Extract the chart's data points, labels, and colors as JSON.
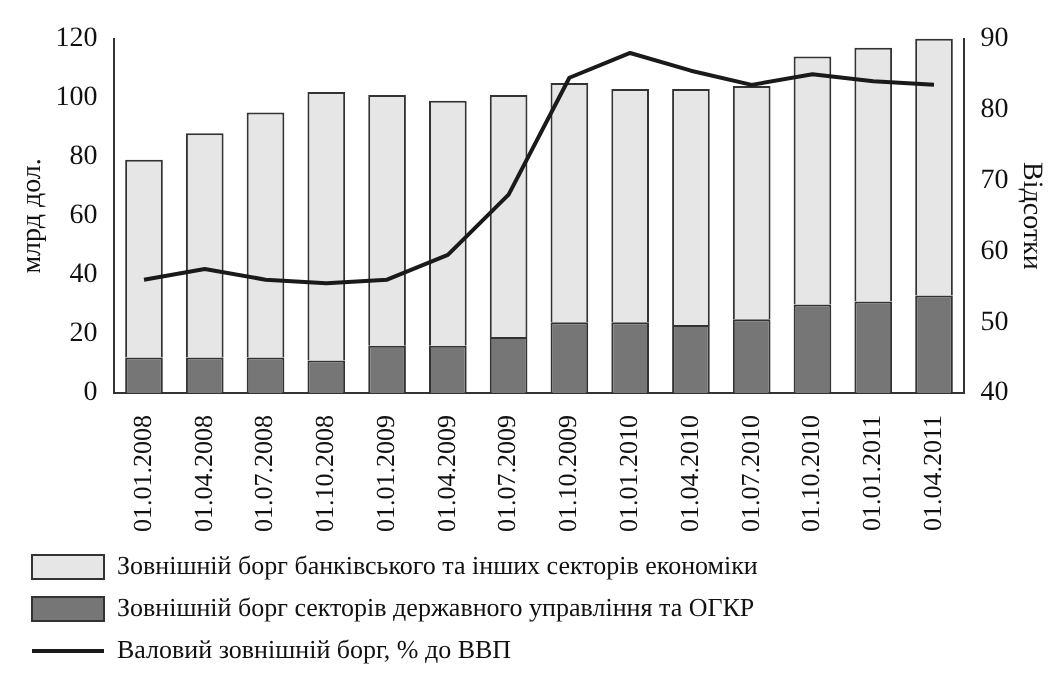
{
  "chart_data": {
    "type": "bar",
    "stacked": true,
    "ylabel": "млрд дол.",
    "y2label": "Відсотки",
    "categories": [
      "01.01.2008",
      "01.04.2008",
      "01.07.2008",
      "01.10.2008",
      "01.01.2009",
      "01.04.2009",
      "01.07.2009",
      "01.10.2009",
      "01.01.2010",
      "01.04.2010",
      "01.07.2010",
      "01.10.2010",
      "01.01.2011",
      "01.04.2011"
    ],
    "series": [
      {
        "name": "Зовнішній борг секторів державного управління та ОГКР",
        "color": "#767676",
        "values": [
          12,
          12,
          12,
          11,
          16,
          16,
          19,
          24,
          24,
          23,
          25,
          30,
          31,
          33
        ]
      },
      {
        "name": "Зовнішній борг банківського та інших секторів економіки",
        "color": "#e6e6e6",
        "values": [
          67,
          76,
          83,
          91,
          85,
          83,
          82,
          81,
          79,
          80,
          79,
          84,
          86,
          87
        ]
      },
      {
        "name": "Валовий зовнішній борг, % до ВВП",
        "type": "line",
        "axis": "y2",
        "color": "#1a1a1a",
        "values": [
          56,
          57.5,
          56,
          55.5,
          56,
          59.5,
          68,
          84.5,
          88,
          85.5,
          83.5,
          85,
          84,
          83.5
        ]
      }
    ],
    "ylim": [
      0,
      120
    ],
    "yticks": [
      0,
      20,
      40,
      60,
      80,
      100,
      120
    ],
    "y2lim": [
      40,
      90
    ],
    "y2ticks": [
      40,
      50,
      60,
      70,
      80,
      90
    ],
    "grid": false,
    "legend": "bottom",
    "marker": "none",
    "line_style": "solid"
  }
}
